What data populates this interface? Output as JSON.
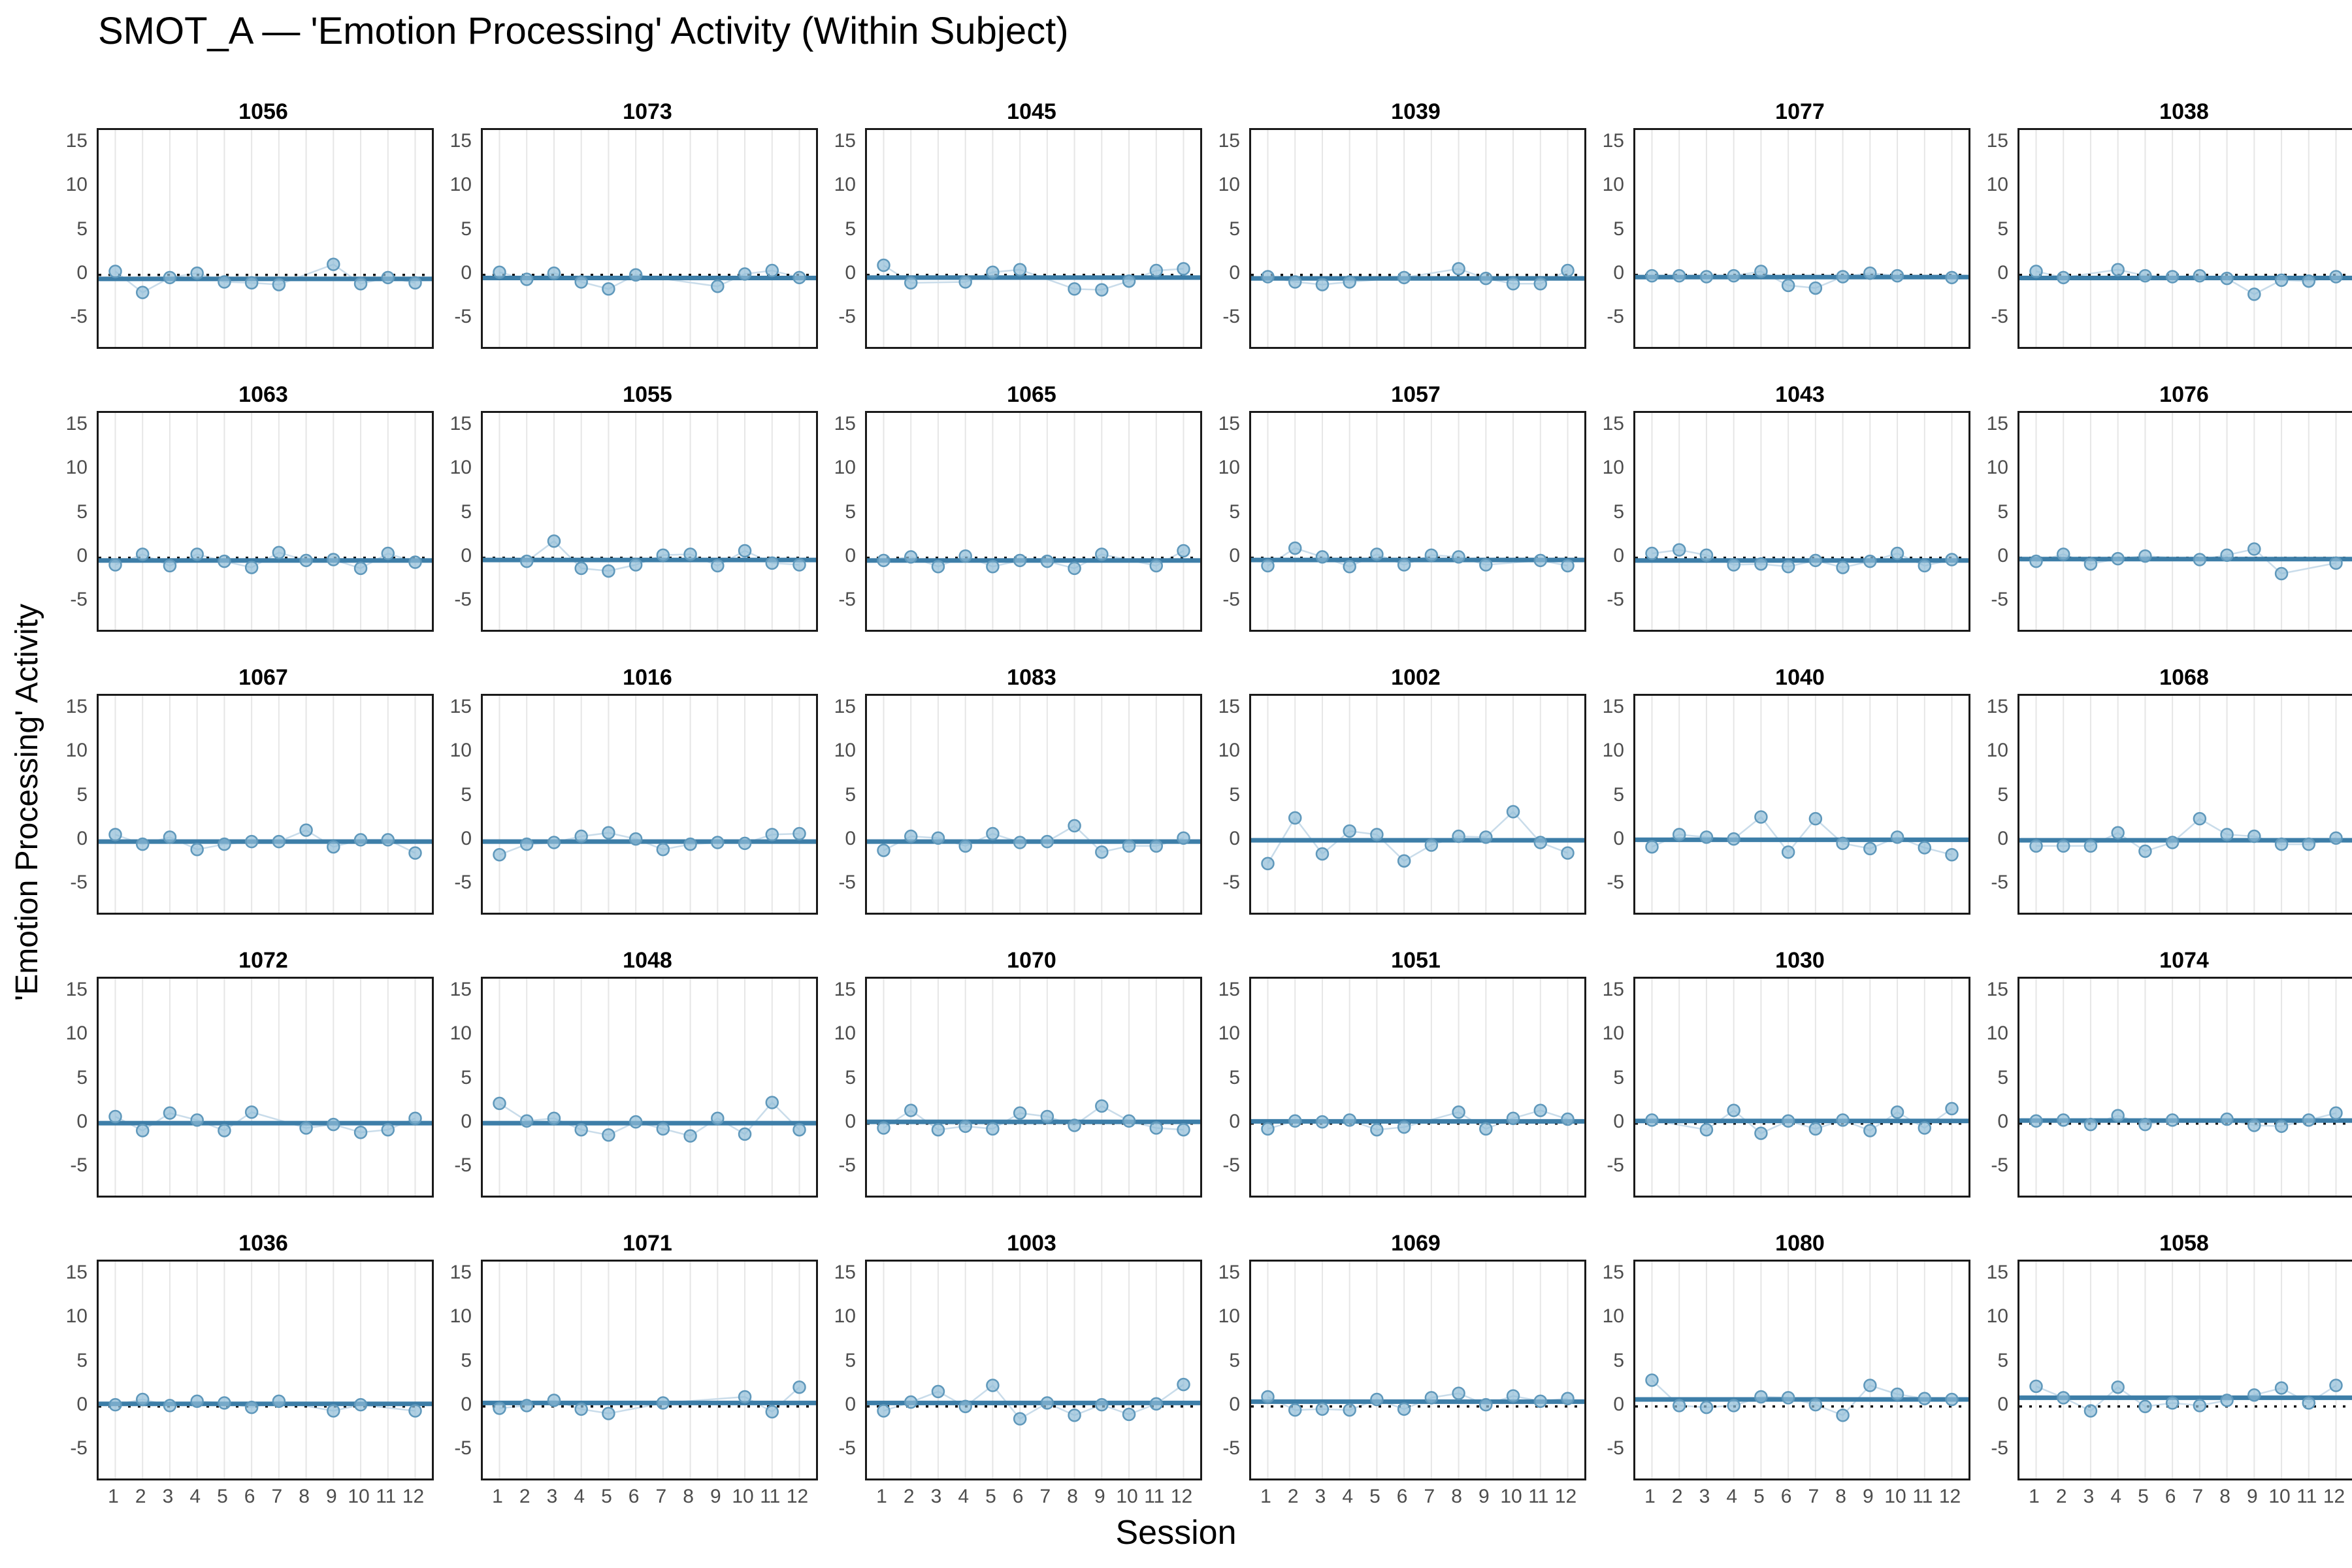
{
  "title": "SMOT_A — 'Emotion Processing' Activity (Within Subject)",
  "xlabel": "Session",
  "ylabel": "'Emotion Processing' Activity",
  "axes": {
    "y_ticks": [
      15,
      10,
      5,
      0,
      -5
    ],
    "x_ticks": [
      1,
      2,
      3,
      4,
      5,
      6,
      7,
      8,
      9,
      10,
      11,
      12
    ],
    "ymax": 16.5,
    "ymin": -8.2
  },
  "colors": {
    "point_fill": "#8fbcd7",
    "point_stroke": "#5f98bb",
    "connector": "#c9dcea",
    "mean_line": "#3d7ea8",
    "zero_line": "#111111",
    "gridline": "#e6e6e6",
    "panel_border": "#1a1a1a",
    "tick_text": "#4d4d4d"
  },
  "chart_data": {
    "type": "scatter",
    "x": [
      1,
      2,
      3,
      4,
      5,
      6,
      7,
      8,
      9,
      10,
      11,
      12
    ],
    "note_layout": "5 rows x 6 columns of subject facets; solid line = subject mean, dotted line = 0",
    "facets": [
      {
        "subject": "1056",
        "mean": -0.45,
        "values": [
          0.4,
          -2.0,
          -0.3,
          0.2,
          -0.8,
          -0.9,
          -1.1,
          null,
          1.2,
          -1.0,
          -0.3,
          -0.9
        ]
      },
      {
        "subject": "1073",
        "mean": -0.35,
        "values": [
          0.3,
          -0.5,
          0.2,
          -0.8,
          -1.6,
          0.0,
          null,
          null,
          -1.3,
          0.1,
          0.5,
          -0.3
        ]
      },
      {
        "subject": "1045",
        "mean": -0.3,
        "values": [
          1.1,
          -0.9,
          null,
          -0.8,
          0.3,
          0.6,
          null,
          -1.6,
          -1.7,
          -0.7,
          0.5,
          0.7
        ]
      },
      {
        "subject": "1039",
        "mean": -0.4,
        "values": [
          -0.2,
          -0.8,
          -1.1,
          -0.8,
          null,
          -0.3,
          null,
          0.7,
          -0.4,
          -1.0,
          -1.0,
          0.5
        ]
      },
      {
        "subject": "1077",
        "mean": -0.25,
        "values": [
          -0.1,
          -0.1,
          -0.2,
          -0.1,
          0.4,
          -1.2,
          -1.5,
          -0.2,
          0.2,
          -0.1,
          null,
          -0.3
        ]
      },
      {
        "subject": "1038",
        "mean": -0.35,
        "values": [
          0.4,
          -0.3,
          null,
          0.6,
          -0.1,
          -0.2,
          -0.1,
          -0.4,
          -2.2,
          -0.6,
          -0.7,
          -0.2
        ]
      },
      {
        "subject": "1063",
        "mean": -0.3,
        "values": [
          -0.8,
          0.4,
          -0.9,
          0.4,
          -0.4,
          -1.1,
          0.6,
          -0.3,
          -0.2,
          -1.2,
          0.5,
          -0.5
        ]
      },
      {
        "subject": "1055",
        "mean": -0.25,
        "values": [
          null,
          -0.4,
          1.9,
          -1.2,
          -1.5,
          -0.8,
          0.3,
          0.4,
          -0.9,
          0.8,
          -0.6,
          -0.8
        ]
      },
      {
        "subject": "1065",
        "mean": -0.3,
        "values": [
          -0.3,
          0.1,
          -1.0,
          0.2,
          -1.0,
          -0.3,
          -0.4,
          -1.2,
          0.4,
          null,
          -0.9,
          0.8
        ]
      },
      {
        "subject": "1057",
        "mean": -0.25,
        "values": [
          -0.9,
          1.1,
          0.1,
          -1.0,
          0.4,
          -0.8,
          0.3,
          0.1,
          -0.8,
          null,
          -0.3,
          -0.9
        ]
      },
      {
        "subject": "1043",
        "mean": -0.3,
        "values": [
          0.5,
          0.9,
          0.3,
          -0.8,
          -0.7,
          -1.0,
          -0.3,
          -1.1,
          -0.4,
          0.5,
          -0.9,
          -0.2
        ]
      },
      {
        "subject": "1076",
        "mean": -0.15,
        "values": [
          -0.4,
          0.4,
          -0.7,
          -0.1,
          0.2,
          null,
          -0.2,
          0.3,
          1.0,
          -1.8,
          null,
          -0.6
        ]
      },
      {
        "subject": "1067",
        "mean": -0.1,
        "values": [
          0.7,
          -0.4,
          0.4,
          -1.0,
          -0.4,
          -0.1,
          -0.1,
          1.2,
          -0.7,
          0.1,
          0.1,
          -1.4
        ]
      },
      {
        "subject": "1016",
        "mean": -0.1,
        "values": [
          -1.6,
          -0.4,
          -0.2,
          0.5,
          0.9,
          0.2,
          -1.0,
          -0.4,
          -0.2,
          -0.3,
          0.7,
          0.8
        ]
      },
      {
        "subject": "1083",
        "mean": -0.1,
        "values": [
          -1.1,
          0.5,
          0.3,
          -0.6,
          0.8,
          -0.2,
          -0.1,
          1.7,
          -1.3,
          -0.6,
          -0.6,
          0.3
        ]
      },
      {
        "subject": "1002",
        "mean": 0.05,
        "values": [
          -2.6,
          2.6,
          -1.5,
          1.1,
          0.7,
          -2.3,
          -0.5,
          0.5,
          0.4,
          3.3,
          -0.2,
          -1.4
        ]
      },
      {
        "subject": "1040",
        "mean": 0.1,
        "values": [
          -0.7,
          0.7,
          0.4,
          0.2,
          2.7,
          -1.3,
          2.5,
          -0.3,
          -0.9,
          0.4,
          -0.8,
          -1.6
        ]
      },
      {
        "subject": "1068",
        "mean": 0.05,
        "values": [
          -0.6,
          -0.6,
          -0.6,
          0.9,
          -1.2,
          -0.2,
          2.5,
          0.7,
          0.5,
          -0.4,
          -0.4,
          0.3
        ]
      },
      {
        "subject": "1072",
        "mean": 0.05,
        "values": [
          0.8,
          -0.8,
          1.2,
          0.4,
          -0.8,
          1.3,
          null,
          -0.5,
          -0.1,
          -1.0,
          -0.7,
          0.6
        ]
      },
      {
        "subject": "1048",
        "mean": 0.05,
        "values": [
          2.3,
          0.3,
          0.6,
          -0.7,
          -1.3,
          0.2,
          -0.6,
          -1.4,
          0.6,
          -1.2,
          2.4,
          -0.7
        ]
      },
      {
        "subject": "1070",
        "mean": 0.2,
        "values": [
          -0.5,
          1.5,
          -0.7,
          -0.3,
          -0.6,
          1.2,
          0.8,
          -0.2,
          2.0,
          0.3,
          -0.5,
          -0.7
        ]
      },
      {
        "subject": "1051",
        "mean": 0.25,
        "values": [
          -0.6,
          0.3,
          0.2,
          0.4,
          -0.7,
          -0.4,
          null,
          1.3,
          -0.6,
          0.6,
          1.5,
          0.5
        ]
      },
      {
        "subject": "1030",
        "mean": 0.3,
        "values": [
          0.4,
          null,
          -0.7,
          1.5,
          -1.1,
          0.3,
          -0.6,
          0.4,
          -0.8,
          1.3,
          -0.5,
          1.7
        ]
      },
      {
        "subject": "1074",
        "mean": 0.35,
        "values": [
          0.3,
          0.4,
          -0.1,
          0.9,
          -0.1,
          0.4,
          null,
          0.5,
          -0.2,
          -0.3,
          0.4,
          1.2
        ]
      },
      {
        "subject": "1036",
        "mean": 0.3,
        "values": [
          0.2,
          0.8,
          0.1,
          0.6,
          0.4,
          -0.1,
          0.6,
          null,
          -0.5,
          0.2,
          null,
          -0.5
        ]
      },
      {
        "subject": "1071",
        "mean": 0.4,
        "values": [
          -0.2,
          0.1,
          0.7,
          -0.3,
          -0.8,
          null,
          0.4,
          null,
          null,
          1.1,
          -0.6,
          2.2
        ]
      },
      {
        "subject": "1003",
        "mean": 0.4,
        "values": [
          -0.5,
          0.5,
          1.7,
          0.0,
          2.4,
          -1.4,
          0.4,
          -1.0,
          0.2,
          -0.9,
          0.3,
          2.5
        ]
      },
      {
        "subject": "1069",
        "mean": 0.55,
        "values": [
          1.1,
          -0.4,
          -0.3,
          -0.4,
          0.8,
          -0.3,
          1.0,
          1.5,
          0.2,
          1.2,
          0.6,
          0.9
        ]
      },
      {
        "subject": "1080",
        "mean": 0.8,
        "values": [
          3.0,
          0.1,
          -0.1,
          0.1,
          1.1,
          1.0,
          0.2,
          -1.0,
          2.4,
          1.4,
          0.9,
          0.8
        ]
      },
      {
        "subject": "1058",
        "mean": 1.0,
        "values": [
          2.3,
          1.0,
          -0.5,
          2.2,
          0.0,
          0.4,
          0.1,
          0.7,
          1.3,
          2.1,
          0.4,
          2.4
        ]
      }
    ]
  }
}
